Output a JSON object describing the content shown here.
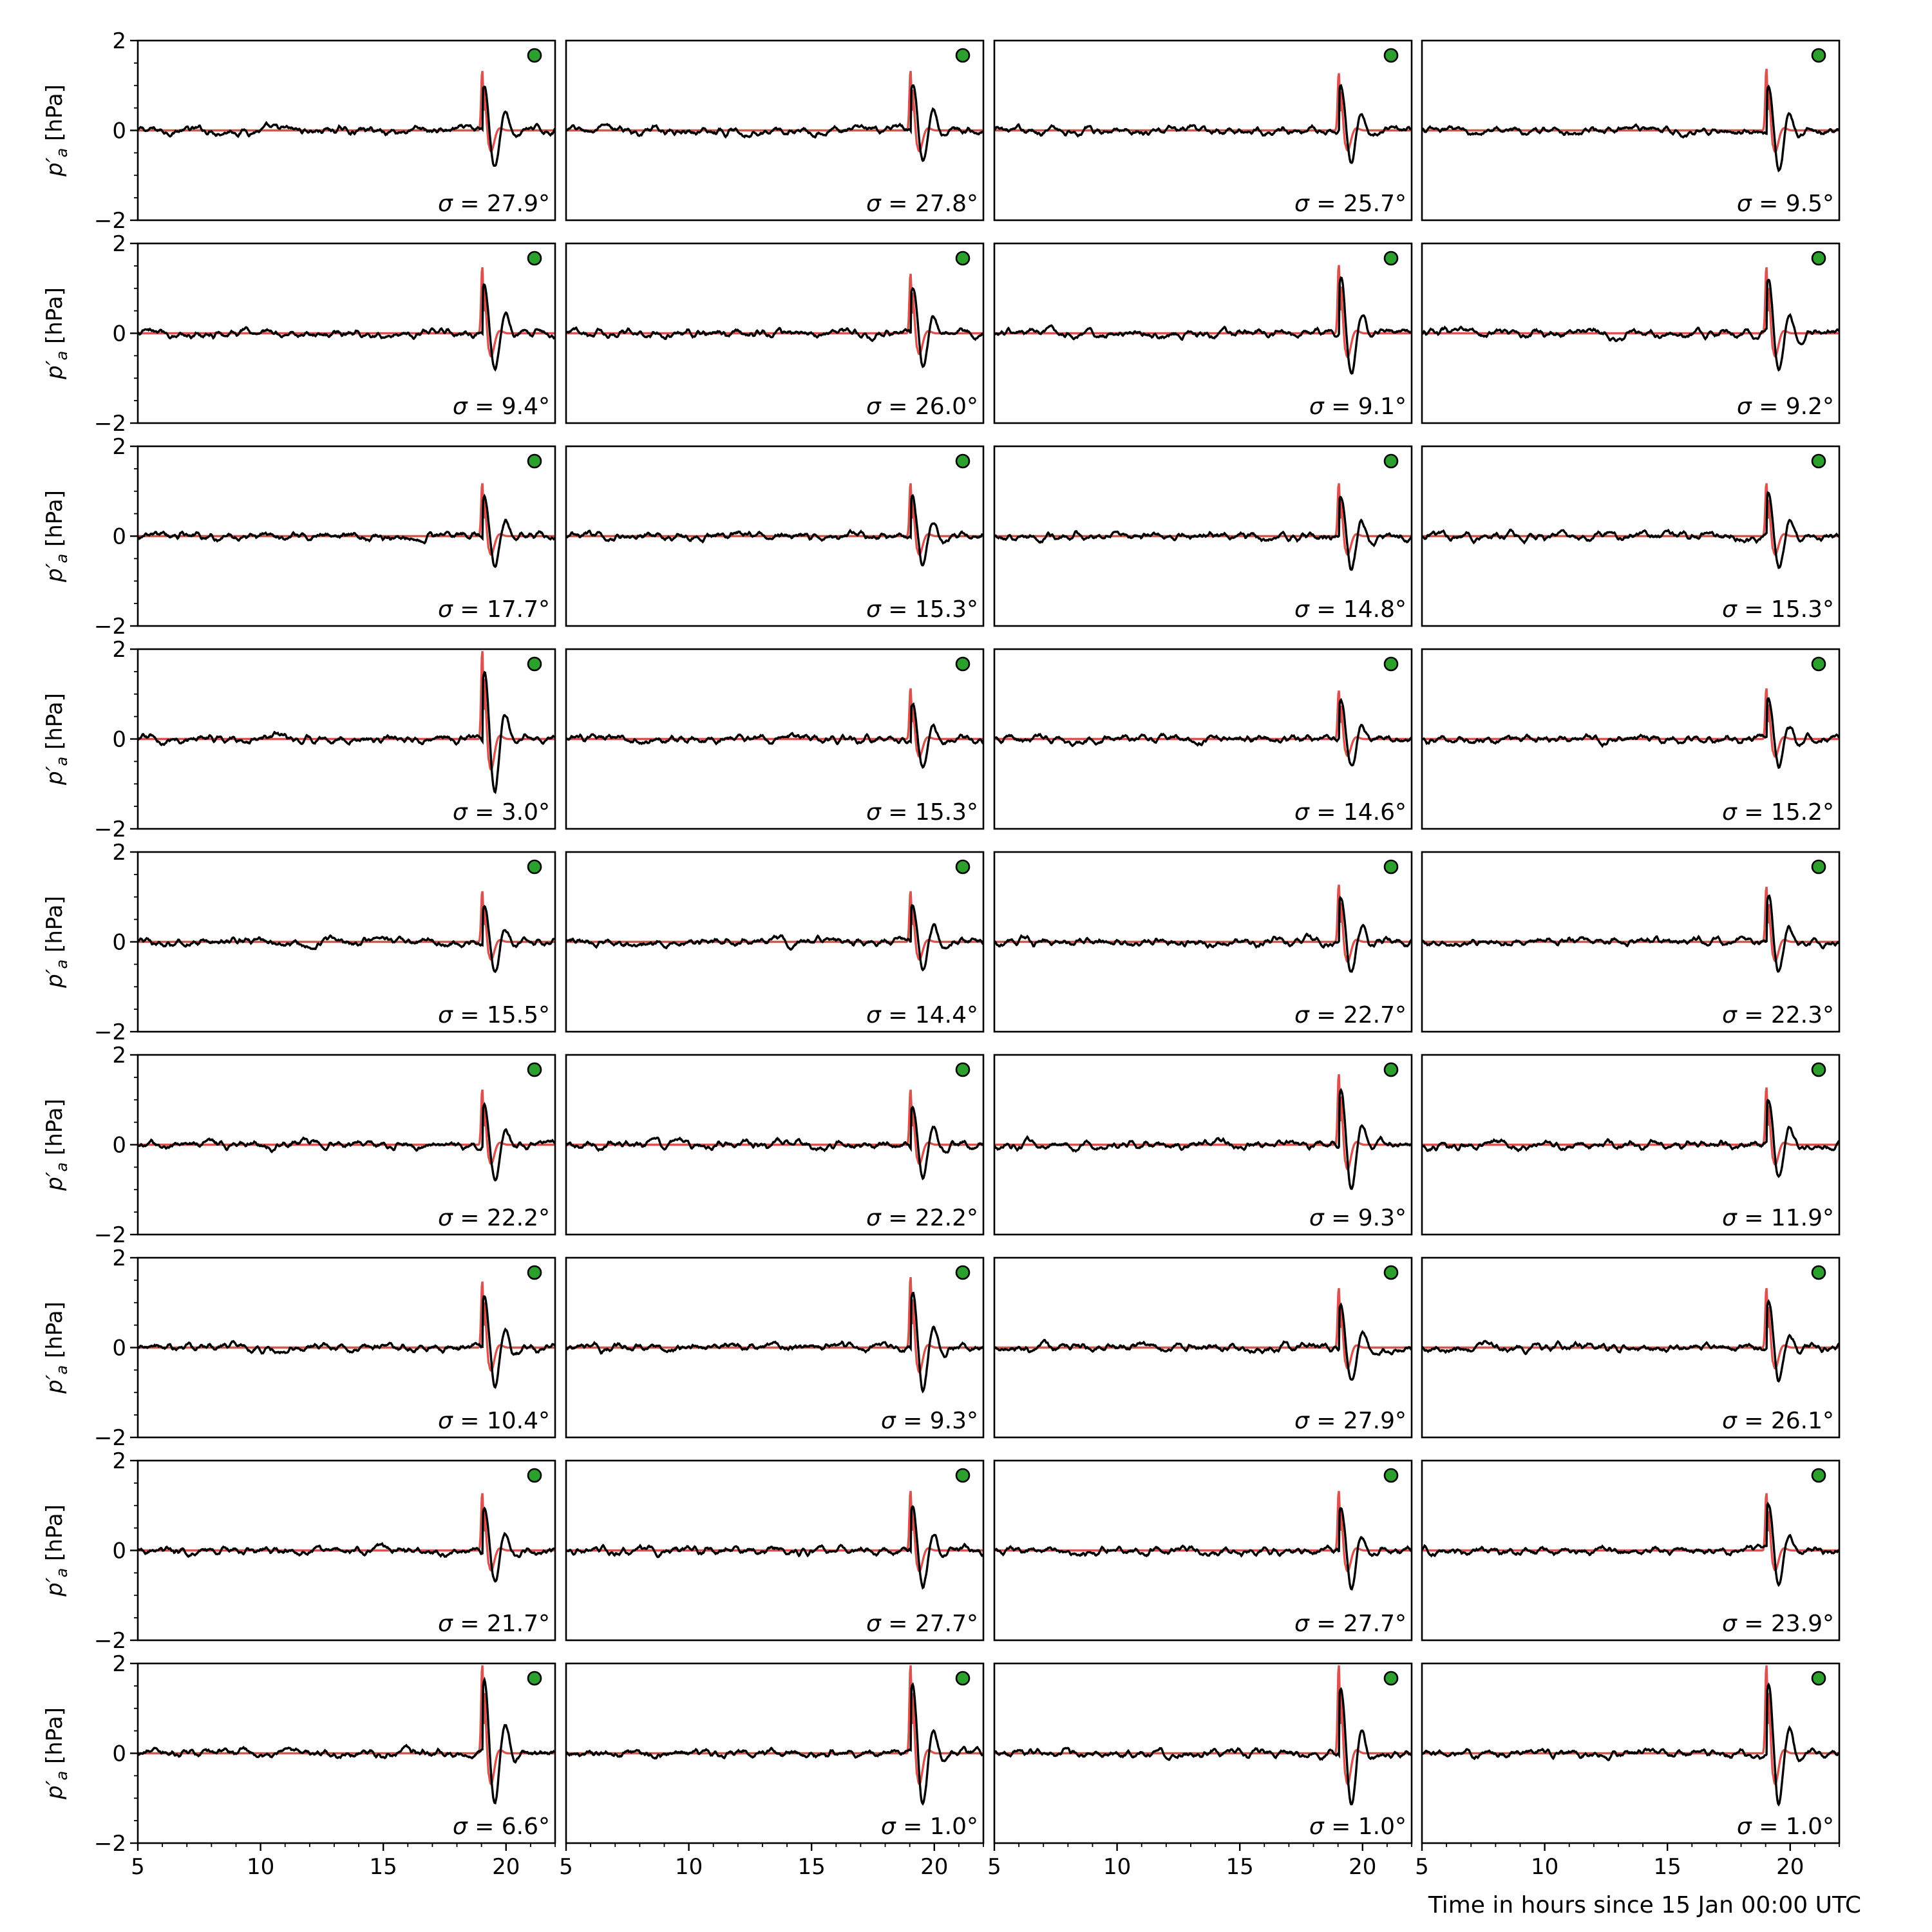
{
  "figure": {
    "xlabel": "Time in hours since 15 Jan 00:00 UTC",
    "ylabel": "p′a [hPa]",
    "ylabel_parts": {
      "p": "p",
      "prime": "′",
      "sub": "a",
      "unit": "[hPa]"
    },
    "sigma_prefix": "σ = ",
    "degree": "°",
    "marker_color": "#2ca02c",
    "observed_color": "#000000",
    "model_color": "#d9534f"
  },
  "chart_data": {
    "type": "line",
    "layout": "small-multiples grid, 9 rows x 4 columns",
    "xlim": [
      5,
      22
    ],
    "ylim": [
      -2,
      2
    ],
    "xticks": [
      5,
      10,
      15,
      20
    ],
    "yticks": [
      -2,
      0,
      2
    ],
    "grid": false,
    "series": [
      {
        "color": "#000000",
        "description": "observed pressure anomaly (noisy)"
      },
      {
        "color": "#d9534f",
        "description": "modelled pressure anomaly"
      }
    ],
    "wave_arrival_hours": 19,
    "panels": [
      {
        "sigma": "27.9",
        "peak": 1.35
      },
      {
        "sigma": "27.8",
        "peak": 1.35
      },
      {
        "sigma": "25.7",
        "peak": 1.3
      },
      {
        "sigma": "9.5",
        "peak": 1.4
      },
      {
        "sigma": "9.4",
        "peak": 1.5
      },
      {
        "sigma": "26.0",
        "peak": 1.35
      },
      {
        "sigma": "9.1",
        "peak": 1.55
      },
      {
        "sigma": "9.2",
        "peak": 1.5
      },
      {
        "sigma": "17.7",
        "peak": 1.2
      },
      {
        "sigma": "15.3",
        "peak": 1.2
      },
      {
        "sigma": "14.8",
        "peak": 1.2
      },
      {
        "sigma": "15.3",
        "peak": 1.2
      },
      {
        "sigma": "3.0",
        "peak": 2.0
      },
      {
        "sigma": "15.3",
        "peak": 1.15
      },
      {
        "sigma": "14.6",
        "peak": 1.1
      },
      {
        "sigma": "15.2",
        "peak": 1.15
      },
      {
        "sigma": "15.5",
        "peak": 1.15
      },
      {
        "sigma": "14.4",
        "peak": 1.15
      },
      {
        "sigma": "22.7",
        "peak": 1.3
      },
      {
        "sigma": "22.3",
        "peak": 1.25
      },
      {
        "sigma": "22.2",
        "peak": 1.25
      },
      {
        "sigma": "22.2",
        "peak": 1.25
      },
      {
        "sigma": "9.3",
        "peak": 1.6
      },
      {
        "sigma": "11.9",
        "peak": 1.3
      },
      {
        "sigma": "10.4",
        "peak": 1.5
      },
      {
        "sigma": "9.3",
        "peak": 1.6
      },
      {
        "sigma": "27.9",
        "peak": 1.35
      },
      {
        "sigma": "26.1",
        "peak": 1.35
      },
      {
        "sigma": "21.7",
        "peak": 1.3
      },
      {
        "sigma": "27.7",
        "peak": 1.35
      },
      {
        "sigma": "27.7",
        "peak": 1.35
      },
      {
        "sigma": "23.9",
        "peak": 1.3
      },
      {
        "sigma": "6.6",
        "peak": 2.0
      },
      {
        "sigma": "1.0",
        "peak": 2.0
      },
      {
        "sigma": "1.0",
        "peak": 2.0
      },
      {
        "sigma": "1.0",
        "peak": 2.0
      }
    ]
  }
}
